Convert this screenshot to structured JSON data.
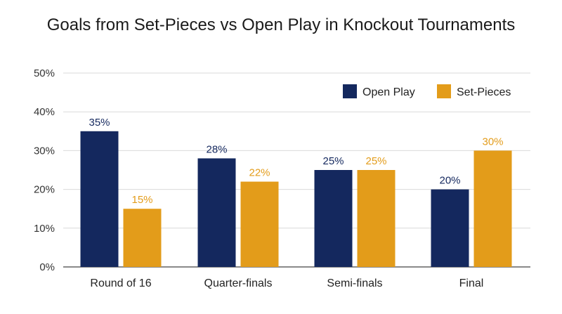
{
  "chart_data": {
    "type": "bar",
    "title": "Goals from Set-Pieces vs Open Play in Knockout Tournaments",
    "xlabel": "",
    "ylabel": "",
    "categories": [
      "Round of 16",
      "Quarter-finals",
      "Semi-finals",
      "Final"
    ],
    "series": [
      {
        "name": "Open Play",
        "values": [
          35,
          28,
          25,
          20
        ],
        "color": "#14285e",
        "labels": [
          "35%",
          "28%",
          "25%",
          "20%"
        ]
      },
      {
        "name": "Set-Pieces",
        "values": [
          15,
          22,
          25,
          30
        ],
        "color": "#e39c1a",
        "labels": [
          "15%",
          "22%",
          "25%",
          "30%"
        ]
      }
    ],
    "ylim": [
      0,
      50
    ],
    "yticks": [
      0,
      10,
      20,
      30,
      40,
      50
    ],
    "ytick_labels": [
      "0%",
      "10%",
      "20%",
      "30%",
      "40%",
      "50%"
    ],
    "grid": true,
    "legend_position": "top-right"
  }
}
